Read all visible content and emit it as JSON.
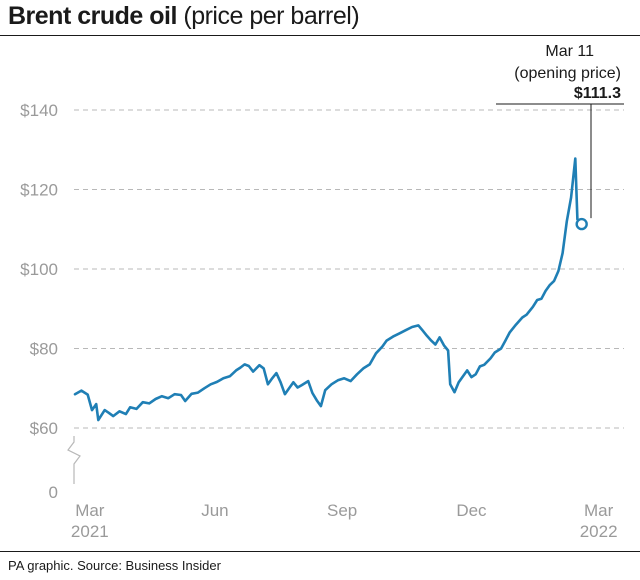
{
  "title_bold": "Brent crude oil",
  "title_light": "(price per barrel)",
  "source": "PA graphic. Source: Business Insider",
  "colors": {
    "line": "#1f7fb5",
    "grid": "#b8b8b8",
    "tick": "#9a9a9a"
  },
  "annotation": {
    "line1": "Mar 11",
    "line2": "(opening price)",
    "value": "$111.3"
  },
  "chart_data": {
    "type": "line",
    "title": "Brent crude oil (price per barrel)",
    "xlabel": "",
    "ylabel": "",
    "ylim": [
      0,
      140
    ],
    "axis_break": true,
    "y_ticks": [
      {
        "value": 140,
        "label": "$140"
      },
      {
        "value": 120,
        "label": "$120"
      },
      {
        "value": 100,
        "label": "$100"
      },
      {
        "value": 80,
        "label": "$80"
      },
      {
        "value": 60,
        "label": "$60"
      },
      {
        "value": 0,
        "label": "0"
      }
    ],
    "x_ticks": [
      {
        "t": 0.35,
        "label": "Mar",
        "sublabel": "2021"
      },
      {
        "t": 3.3,
        "label": "Jun",
        "sublabel": ""
      },
      {
        "t": 6.3,
        "label": "Sep",
        "sublabel": ""
      },
      {
        "t": 9.35,
        "label": "Dec",
        "sublabel": ""
      },
      {
        "t": 12.35,
        "label": "Mar",
        "sublabel": "2022"
      }
    ],
    "grid": true,
    "series": [
      {
        "values_t_price": [
          [
            0.0,
            68.5
          ],
          [
            0.15,
            69.4
          ],
          [
            0.3,
            68.4
          ],
          [
            0.4,
            64.5
          ],
          [
            0.5,
            66.0
          ],
          [
            0.55,
            62.0
          ],
          [
            0.7,
            64.5
          ],
          [
            0.8,
            63.8
          ],
          [
            0.9,
            63.0
          ],
          [
            1.05,
            64.2
          ],
          [
            1.2,
            63.5
          ],
          [
            1.3,
            65.2
          ],
          [
            1.45,
            64.8
          ],
          [
            1.6,
            66.5
          ],
          [
            1.75,
            66.2
          ],
          [
            1.9,
            67.3
          ],
          [
            2.05,
            68.0
          ],
          [
            2.2,
            67.5
          ],
          [
            2.35,
            68.5
          ],
          [
            2.5,
            68.3
          ],
          [
            2.6,
            66.8
          ],
          [
            2.75,
            68.6
          ],
          [
            2.9,
            68.9
          ],
          [
            3.05,
            70.0
          ],
          [
            3.2,
            71.0
          ],
          [
            3.35,
            71.6
          ],
          [
            3.5,
            72.5
          ],
          [
            3.65,
            73.0
          ],
          [
            3.8,
            74.5
          ],
          [
            3.9,
            75.2
          ],
          [
            4.0,
            76.0
          ],
          [
            4.1,
            75.6
          ],
          [
            4.2,
            74.2
          ],
          [
            4.35,
            75.8
          ],
          [
            4.45,
            75.0
          ],
          [
            4.55,
            71.0
          ],
          [
            4.65,
            72.5
          ],
          [
            4.75,
            73.8
          ],
          [
            4.85,
            71.5
          ],
          [
            4.95,
            68.5
          ],
          [
            5.05,
            70.0
          ],
          [
            5.15,
            71.5
          ],
          [
            5.25,
            70.2
          ],
          [
            5.35,
            70.8
          ],
          [
            5.5,
            71.8
          ],
          [
            5.6,
            68.8
          ],
          [
            5.7,
            67.0
          ],
          [
            5.8,
            65.5
          ],
          [
            5.9,
            69.5
          ],
          [
            6.05,
            71.0
          ],
          [
            6.2,
            72.0
          ],
          [
            6.35,
            72.5
          ],
          [
            6.5,
            71.8
          ],
          [
            6.65,
            73.5
          ],
          [
            6.8,
            75.0
          ],
          [
            6.95,
            76.0
          ],
          [
            7.1,
            78.8
          ],
          [
            7.25,
            80.5
          ],
          [
            7.35,
            82.0
          ],
          [
            7.5,
            83.0
          ],
          [
            7.65,
            83.8
          ],
          [
            7.8,
            84.6
          ],
          [
            7.95,
            85.4
          ],
          [
            8.1,
            85.8
          ],
          [
            8.2,
            84.5
          ],
          [
            8.3,
            83.2
          ],
          [
            8.4,
            82.0
          ],
          [
            8.5,
            81.0
          ],
          [
            8.6,
            82.8
          ],
          [
            8.7,
            80.8
          ],
          [
            8.8,
            79.5
          ],
          [
            8.85,
            71.0
          ],
          [
            8.95,
            69.0
          ],
          [
            9.05,
            71.5
          ],
          [
            9.15,
            73.0
          ],
          [
            9.25,
            74.5
          ],
          [
            9.35,
            72.8
          ],
          [
            9.45,
            73.5
          ],
          [
            9.55,
            75.5
          ],
          [
            9.65,
            75.9
          ],
          [
            9.8,
            77.5
          ],
          [
            9.9,
            79.0
          ],
          [
            10.05,
            80.0
          ],
          [
            10.15,
            82.0
          ],
          [
            10.25,
            84.0
          ],
          [
            10.4,
            86.0
          ],
          [
            10.55,
            87.8
          ],
          [
            10.65,
            88.5
          ],
          [
            10.8,
            90.5
          ],
          [
            10.9,
            92.2
          ],
          [
            11.0,
            92.5
          ],
          [
            11.1,
            94.5
          ],
          [
            11.2,
            96.0
          ],
          [
            11.3,
            97.0
          ],
          [
            11.4,
            99.5
          ],
          [
            11.5,
            104.0
          ],
          [
            11.6,
            112.0
          ],
          [
            11.7,
            118.0
          ],
          [
            11.8,
            127.8
          ],
          [
            11.85,
            112.5
          ],
          [
            11.95,
            111.3
          ]
        ]
      }
    ]
  }
}
